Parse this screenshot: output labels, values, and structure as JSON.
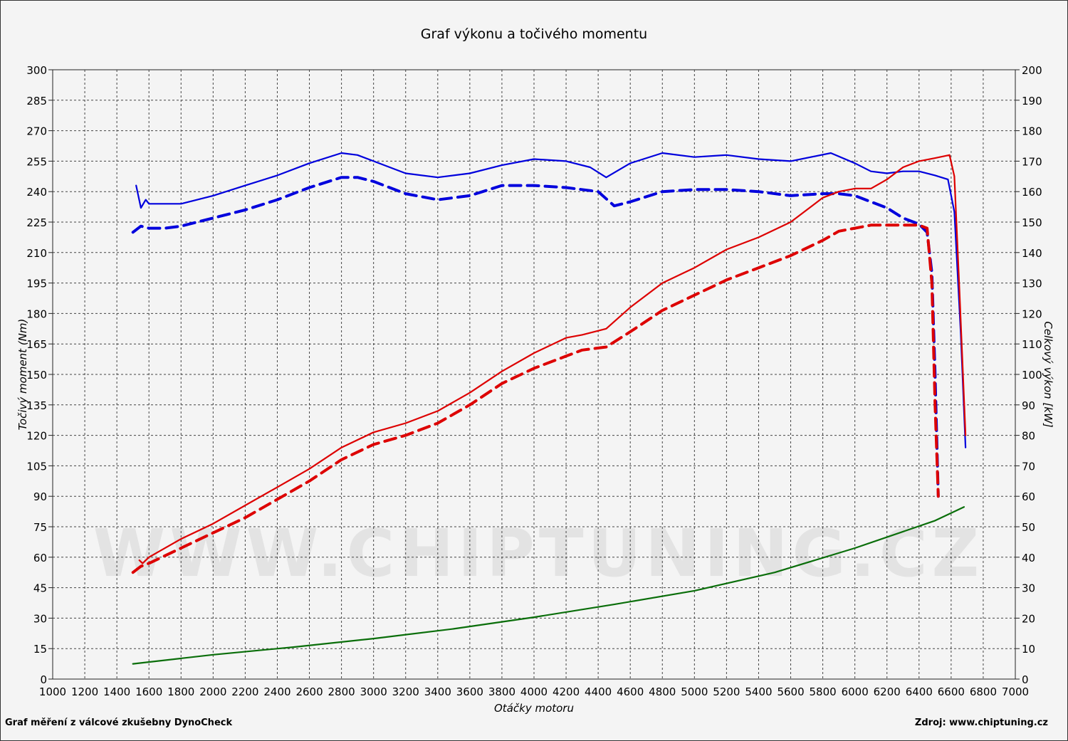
{
  "chart_data": {
    "type": "line",
    "title": "Graf výkonu a točivého momentu",
    "xlabel": "Otáčky motoru",
    "ylabel_left": "Točivý moment (Nm)",
    "ylabel_right": "Celkový výkon [kW]",
    "xlim": [
      1000,
      7000
    ],
    "ylim_left": [
      0,
      300
    ],
    "ylim_right": [
      0,
      200
    ],
    "x_ticks": [
      "1000",
      "1200",
      "1400",
      "1600",
      "1800",
      "2000",
      "2200",
      "2400",
      "2600",
      "2800",
      "3000",
      "3200",
      "3400",
      "3600",
      "3800",
      "4000",
      "4200",
      "4400",
      "4600",
      "4800",
      "5000",
      "5200",
      "5400",
      "5600",
      "5800",
      "6000",
      "6200",
      "6400",
      "6600",
      "6800",
      "7000"
    ],
    "y_left_ticks": [
      "0",
      "15",
      "30",
      "45",
      "60",
      "75",
      "90",
      "105",
      "120",
      "135",
      "150",
      "165",
      "180",
      "195",
      "210",
      "225",
      "240",
      "255",
      "270",
      "285",
      "300"
    ],
    "y_right_ticks": [
      "0",
      "10",
      "20",
      "30",
      "40",
      "50",
      "60",
      "70",
      "80",
      "90",
      "100",
      "110",
      "120",
      "130",
      "140",
      "150",
      "160",
      "170",
      "180",
      "190",
      "200"
    ],
    "grid": true,
    "watermark": "WWW.CHIPTUNING.CZ",
    "series": [
      {
        "axis": "left",
        "color": "#0000dd",
        "dash": "solid",
        "x": [
          1520,
          1550,
          1580,
          1600,
          1650,
          1800,
          2000,
          2200,
          2400,
          2600,
          2800,
          2900,
          3000,
          3200,
          3400,
          3600,
          3800,
          4000,
          4200,
          4350,
          4450,
          4600,
          4800,
          5000,
          5200,
          5400,
          5600,
          5850,
          6000,
          6100,
          6200,
          6300,
          6400,
          6500,
          6580,
          6620,
          6660,
          6690
        ],
        "y": [
          243,
          232,
          236,
          234,
          234,
          234,
          238,
          243,
          248,
          254,
          259,
          258,
          255,
          249,
          247,
          249,
          253,
          256,
          255,
          252,
          247,
          254,
          259,
          257,
          258,
          256,
          255,
          259,
          254,
          250,
          249,
          250,
          250,
          248,
          246,
          230,
          170,
          114
        ]
      },
      {
        "axis": "left",
        "color": "#0000dd",
        "dash": "dashed",
        "x": [
          1500,
          1550,
          1600,
          1700,
          1800,
          2000,
          2200,
          2400,
          2600,
          2800,
          2900,
          3000,
          3200,
          3400,
          3600,
          3800,
          4000,
          4200,
          4400,
          4500,
          4600,
          4800,
          5000,
          5200,
          5400,
          5600,
          5800,
          5900,
          6000,
          6100,
          6200,
          6300,
          6400,
          6450,
          6480,
          6500,
          6520
        ],
        "y": [
          220,
          223,
          222,
          222,
          223,
          227,
          231,
          236,
          242,
          247,
          247,
          245,
          239,
          236,
          238,
          243,
          243,
          242,
          240,
          233,
          235,
          240,
          241,
          241,
          240,
          238,
          239,
          239,
          238,
          235,
          232,
          227,
          224,
          220,
          200,
          150,
          90
        ]
      },
      {
        "axis": "right",
        "color": "#dd0000",
        "dash": "solid",
        "x": [
          1540,
          1560,
          1600,
          1800,
          2000,
          2200,
          2400,
          2600,
          2800,
          3000,
          3200,
          3400,
          3600,
          3800,
          4000,
          4200,
          4300,
          4450,
          4600,
          4800,
          5000,
          5200,
          5400,
          5600,
          5800,
          5900,
          6000,
          6100,
          6200,
          6300,
          6400,
          6500,
          6590,
          6620,
          6650,
          6690
        ],
        "y": [
          39,
          38,
          40,
          46,
          51,
          57,
          63,
          69,
          76,
          81,
          84,
          88,
          94,
          101,
          107,
          112,
          113,
          115,
          122,
          130,
          135,
          141,
          145,
          150,
          158,
          160,
          161,
          161,
          164,
          168,
          170,
          171,
          172,
          165,
          130,
          80
        ]
      },
      {
        "axis": "right",
        "color": "#dd0000",
        "dash": "dashed",
        "x": [
          1500,
          1550,
          1600,
          1800,
          2000,
          2200,
          2400,
          2600,
          2800,
          3000,
          3200,
          3400,
          3600,
          3800,
          4000,
          4200,
          4300,
          4450,
          4600,
          4800,
          5000,
          5200,
          5400,
          5600,
          5800,
          5900,
          6000,
          6100,
          6200,
          6300,
          6400,
          6450,
          6480,
          6500,
          6520
        ],
        "y": [
          35,
          37,
          38,
          43,
          48,
          53,
          59,
          65,
          72,
          77,
          80,
          84,
          90,
          97,
          102,
          106,
          108,
          109,
          114,
          121,
          126,
          131,
          135,
          139,
          144,
          147,
          148,
          149,
          149,
          149,
          149,
          148,
          130,
          90,
          60
        ]
      },
      {
        "axis": "right",
        "color": "#0a6e0a",
        "dash": "solid",
        "x": [
          1500,
          2000,
          2500,
          3000,
          3500,
          4000,
          4500,
          5000,
          5500,
          6000,
          6500,
          6680
        ],
        "y": [
          5,
          8,
          10.5,
          13.3,
          16.5,
          20.3,
          24.5,
          29,
          35,
          43,
          52,
          56.5
        ]
      }
    ]
  },
  "footer": {
    "left": "Graf měření z válcové zkušebny DynoCheck",
    "right": "Zdroj: www.chiptuning.cz"
  }
}
